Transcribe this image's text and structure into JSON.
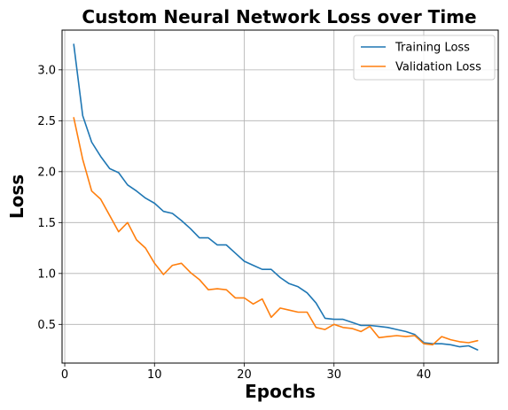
{
  "chart_data": {
    "type": "line",
    "title": "Custom Neural Network Loss over Time",
    "xlabel": "Epochs",
    "ylabel": "Loss",
    "xlim": [
      -0.3,
      48.3
    ],
    "ylim": [
      0.12,
      3.39
    ],
    "xticks": [
      0,
      10,
      20,
      30,
      40
    ],
    "yticks": [
      0.5,
      1.0,
      1.5,
      2.0,
      2.5,
      3.0
    ],
    "xtick_labels": [
      "0",
      "10",
      "20",
      "30",
      "40"
    ],
    "ytick_labels": [
      "0.5",
      "1.0",
      "1.5",
      "2.0",
      "2.5",
      "3.0"
    ],
    "grid": true,
    "legend_position": "top-right",
    "x": [
      1,
      2,
      3,
      4,
      5,
      6,
      7,
      8,
      9,
      10,
      11,
      12,
      13,
      14,
      15,
      16,
      17,
      18,
      19,
      20,
      21,
      22,
      23,
      24,
      25,
      26,
      27,
      28,
      29,
      30,
      31,
      32,
      33,
      34,
      35,
      36,
      37,
      38,
      39,
      40,
      41,
      42,
      43,
      44,
      45,
      46
    ],
    "series": [
      {
        "name": "Training Loss",
        "color": "#1f77b4",
        "values": [
          3.25,
          2.55,
          2.29,
          2.15,
          2.03,
          1.99,
          1.87,
          1.81,
          1.74,
          1.69,
          1.61,
          1.59,
          1.52,
          1.44,
          1.35,
          1.35,
          1.28,
          1.28,
          1.2,
          1.12,
          1.08,
          1.04,
          1.04,
          0.96,
          0.9,
          0.87,
          0.81,
          0.71,
          0.56,
          0.55,
          0.55,
          0.52,
          0.49,
          0.49,
          0.48,
          0.47,
          0.45,
          0.43,
          0.4,
          0.32,
          0.31,
          0.31,
          0.3,
          0.28,
          0.29,
          0.25
        ]
      },
      {
        "name": "Validation Loss",
        "color": "#ff7f0e",
        "values": [
          2.53,
          2.12,
          1.81,
          1.73,
          1.57,
          1.41,
          1.5,
          1.33,
          1.25,
          1.1,
          0.99,
          1.08,
          1.1,
          1.01,
          0.94,
          0.84,
          0.85,
          0.84,
          0.76,
          0.76,
          0.7,
          0.75,
          0.57,
          0.66,
          0.64,
          0.62,
          0.62,
          0.47,
          0.45,
          0.5,
          0.47,
          0.46,
          0.43,
          0.48,
          0.37,
          0.38,
          0.39,
          0.38,
          0.39,
          0.31,
          0.3,
          0.38,
          0.35,
          0.33,
          0.32,
          0.34
        ]
      }
    ]
  }
}
